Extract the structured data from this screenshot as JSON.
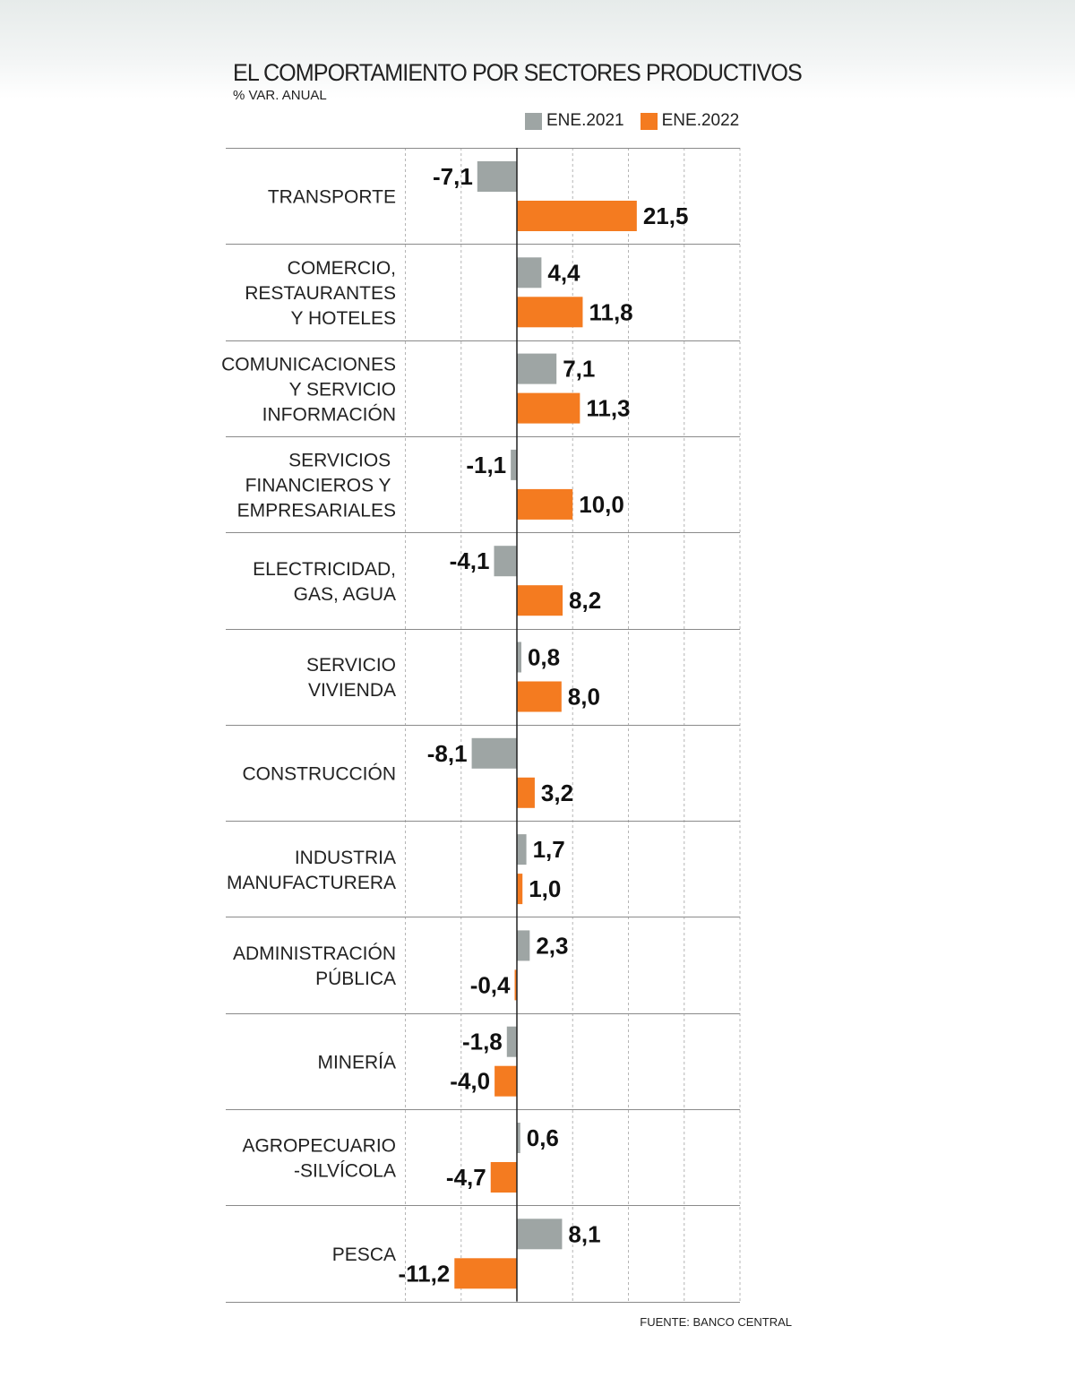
{
  "title": "EL COMPORTAMIENTO POR SECTORES PRODUCTIVOS",
  "subtitle": "% VAR. ANUAL",
  "source": "FUENTE: BANCO CENTRAL",
  "colors": {
    "ene2021": "#9ea5a4",
    "ene2022": "#f47b20",
    "axis": "#222222",
    "grid": "#b5b5b5",
    "separator": "#8a8a8a"
  },
  "chart_data": {
    "type": "bar",
    "orientation": "horizontal",
    "title": "EL COMPORTAMIENTO POR SECTORES PRODUCTIVOS",
    "subtitle": "% VAR. ANUAL",
    "xlim": [
      -20,
      40
    ],
    "grid": true,
    "legend_position": "top-right",
    "categories": [
      [
        "TRANSPORTE"
      ],
      [
        "COMERCIO,",
        "RESTAURANTES",
        "Y HOTELES"
      ],
      [
        "COMUNICACIONES",
        "Y SERVICIO",
        "INFORMACIÓN"
      ],
      [
        "SERVICIOS ",
        "FINANCIEROS Y ",
        "EMPRESARIALES"
      ],
      [
        "ELECTRICIDAD,",
        "GAS, AGUA"
      ],
      [
        "SERVICIO",
        "VIVIENDA "
      ],
      [
        "CONSTRUCCIÓN"
      ],
      [
        "INDUSTRIA",
        "MANUFACTURERA"
      ],
      [
        "ADMINISTRACIÓN",
        "PÚBLICA"
      ],
      [
        "MINERÍA"
      ],
      [
        "AGROPECUARIO",
        "-SILVÍCOLA "
      ],
      [
        "PESCA"
      ]
    ],
    "series": [
      {
        "name": "ENE.2021",
        "values": [
          -7.1,
          4.4,
          7.1,
          -1.1,
          -4.1,
          0.8,
          -8.1,
          1.7,
          2.3,
          -1.8,
          0.6,
          8.1
        ],
        "labels": [
          "-7,1",
          "4,4",
          "7,1",
          "-1,1",
          "-4,1",
          "0,8",
          "-8,1",
          "1,7",
          "2,3",
          "-1,8",
          "0,6",
          "8,1"
        ]
      },
      {
        "name": "ENE.2022",
        "values": [
          21.5,
          11.8,
          11.3,
          10.0,
          8.2,
          8.0,
          3.2,
          1.0,
          -0.4,
          -4.0,
          -4.7,
          -11.2
        ],
        "labels": [
          "21,5",
          "11,8",
          "11,3",
          "10,0",
          "8,2",
          "8,0",
          "3,2",
          "1,0",
          "-0,4",
          "-4,0",
          "-4,7",
          "-11,2"
        ]
      }
    ]
  }
}
